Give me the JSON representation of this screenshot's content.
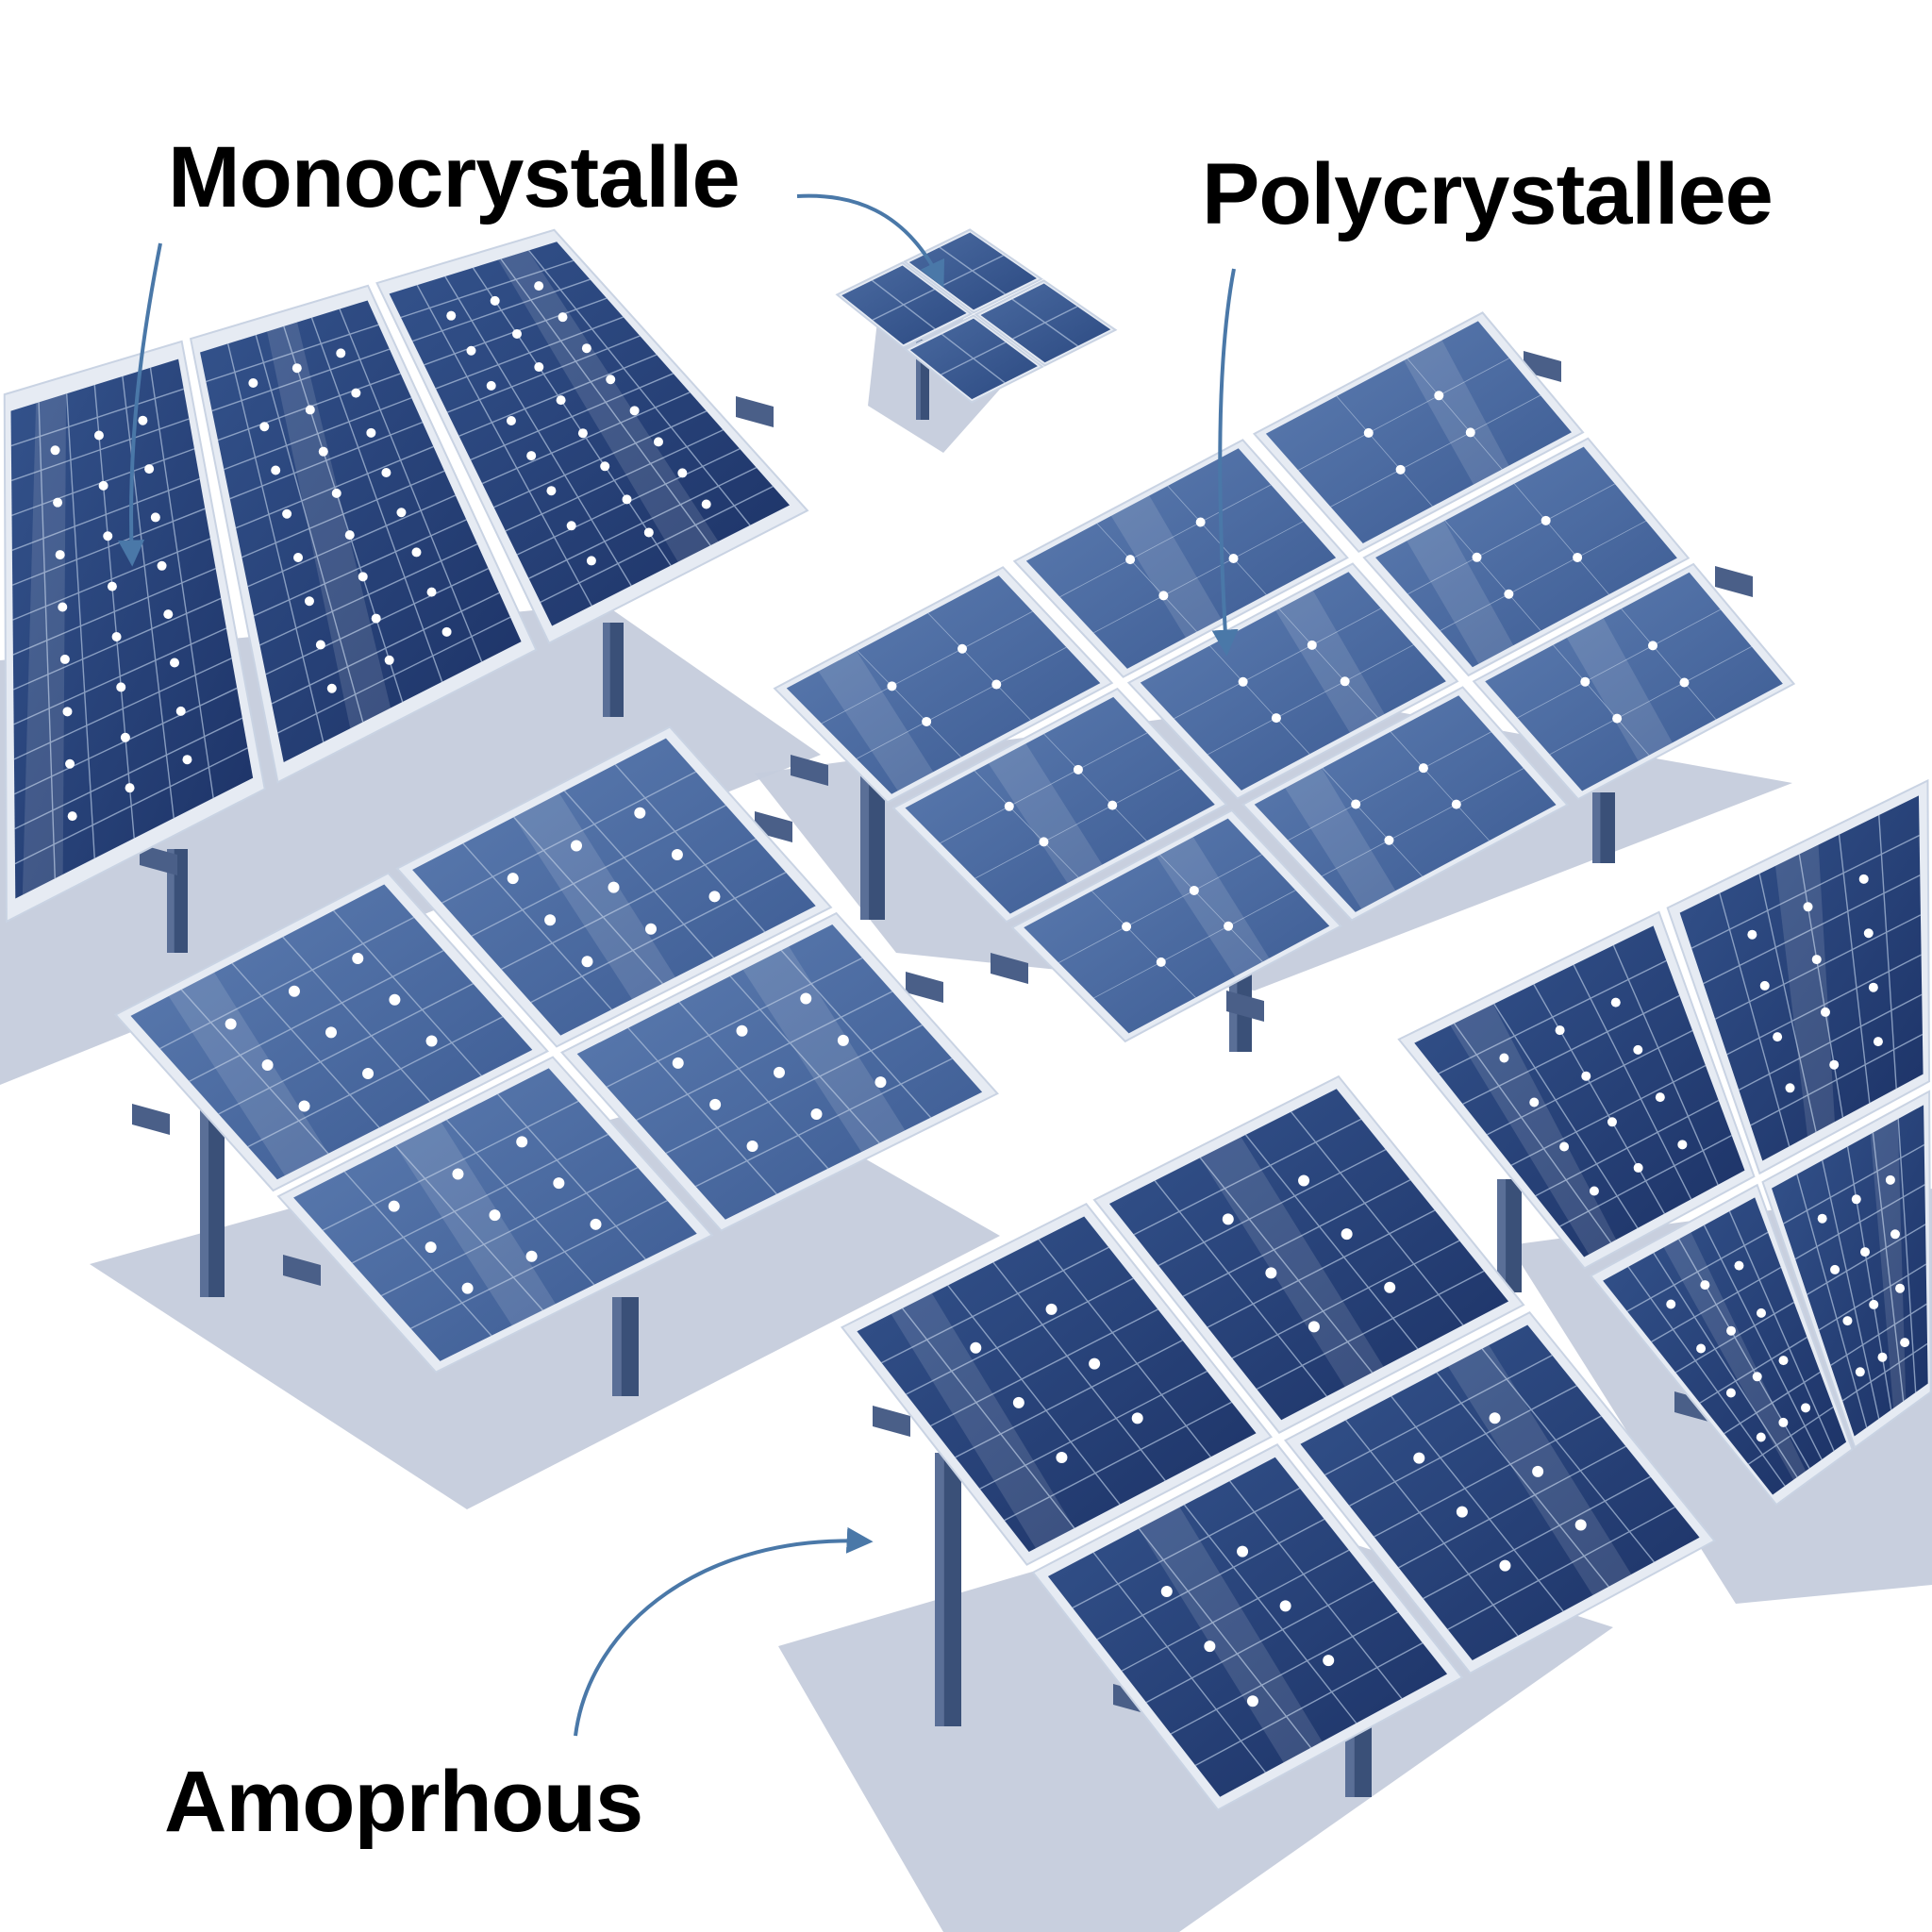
{
  "labels": {
    "monocrystalline": "Monocrystalle",
    "polycrystalline": "Polycrystallee",
    "amorphous": "Amoprhous"
  },
  "colors": {
    "background": "#ffffff",
    "ground_shadow": "#c5ccdc",
    "frame": "#e6ebf3",
    "cell_light": "#4f6fa3",
    "cell_dark": "#233d73",
    "cell_line": "#a9bcd9",
    "cell_dot": "#ffffff",
    "post": "#3a5078",
    "arrow": "#4a78a8",
    "label_text": "#000000"
  },
  "icons": {
    "panel": "solar-panel-icon",
    "arrow": "curved-arrow-icon"
  },
  "panel_groups": [
    {
      "type": "monocrystalline-array",
      "modules": 3
    },
    {
      "type": "small-module",
      "modules": 4
    },
    {
      "type": "polycrystalline-array",
      "modules": 9
    },
    {
      "type": "monocrystalline-array",
      "modules": 4
    },
    {
      "type": "amorphous-array",
      "modules": 4
    },
    {
      "type": "dark-array",
      "modules": 4
    }
  ]
}
